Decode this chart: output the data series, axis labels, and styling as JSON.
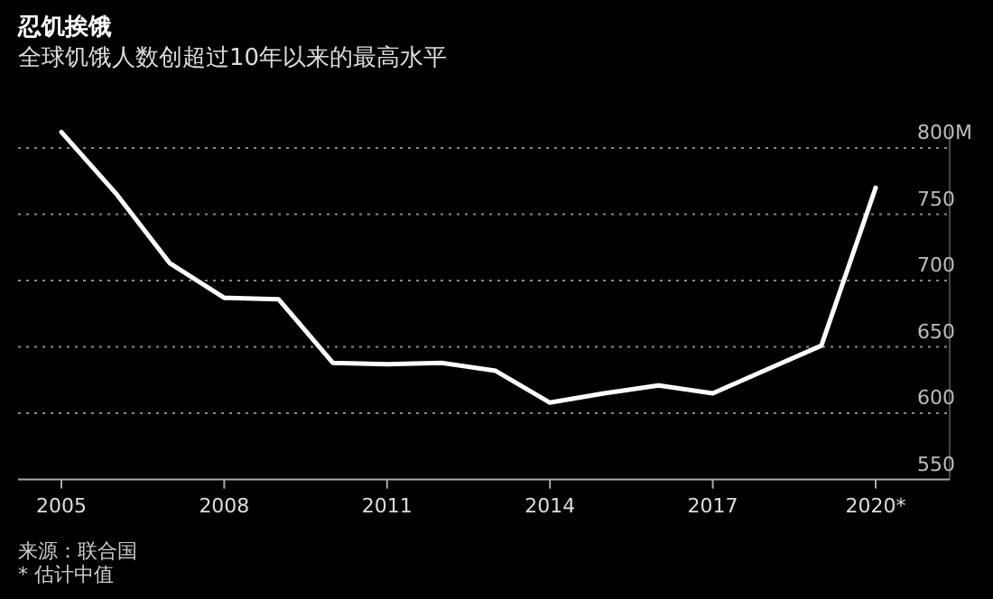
{
  "chart_data": {
    "type": "line",
    "title": "忍饥挨饿",
    "subtitle": "全球饥饿人数创超过10年以来的最高水平",
    "categories": [
      "2005",
      null,
      null,
      "2008",
      null,
      null,
      "2011",
      null,
      null,
      "2014",
      null,
      null,
      "2017",
      null,
      null,
      "2020*"
    ],
    "values": [
      812,
      766,
      713,
      687,
      686,
      638,
      637,
      638,
      632,
      608,
      615,
      621,
      615,
      633,
      651,
      770
    ],
    "color": "#ffffff",
    "ylim": [
      550,
      815
    ],
    "yticks": [
      550,
      600,
      650,
      700,
      750,
      {
        "value": 800,
        "label": "800M"
      }
    ],
    "grid": "y",
    "marker": "none",
    "line_style": "solid",
    "annotations": [
      "来源：联合国",
      "* 估计中值"
    ]
  }
}
